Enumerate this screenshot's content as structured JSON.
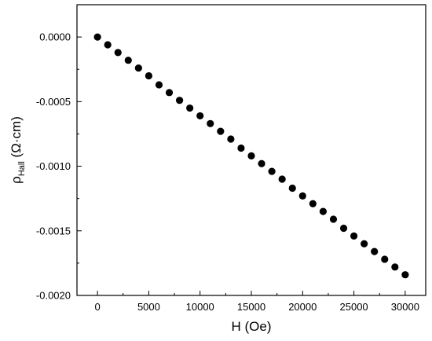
{
  "chart_data": {
    "type": "scatter",
    "xlabel": "H (Oe)",
    "ylabel_symbol": "ρ",
    "ylabel_subscript": "Hall",
    "ylabel_units": " (Ω·cm)",
    "xlim": [
      -2000,
      32000
    ],
    "ylim": [
      -0.002,
      0.00025
    ],
    "x_ticks": [
      0,
      5000,
      10000,
      15000,
      20000,
      25000,
      30000
    ],
    "y_ticks": [
      0.0,
      -0.0005,
      -0.001,
      -0.0015,
      -0.002
    ],
    "y_tick_labels": [
      "0.0000",
      "-0.0005",
      "-0.0010",
      "-0.0015",
      "-0.0020"
    ],
    "grid": false,
    "marker_color": "#000000",
    "series": [
      {
        "x": [
          0,
          1000,
          2000,
          3000,
          4000,
          5000,
          6000,
          7000,
          8000,
          9000,
          10000,
          11000,
          12000,
          13000,
          14000,
          15000,
          16000,
          17000,
          18000,
          19000,
          20000,
          21000,
          22000,
          23000,
          24000,
          25000,
          26000,
          27000,
          28000,
          29000,
          30000
        ],
        "y": [
          0.0,
          -6e-05,
          -0.00012,
          -0.00018,
          -0.00024,
          -0.0003,
          -0.00037,
          -0.00043,
          -0.00049,
          -0.00055,
          -0.00061,
          -0.00067,
          -0.00073,
          -0.00079,
          -0.00086,
          -0.00092,
          -0.00098,
          -0.00104,
          -0.0011,
          -0.00117,
          -0.00123,
          -0.00129,
          -0.00135,
          -0.00141,
          -0.00148,
          -0.00154,
          -0.0016,
          -0.00166,
          -0.00172,
          -0.00178,
          -0.00184
        ]
      }
    ]
  }
}
